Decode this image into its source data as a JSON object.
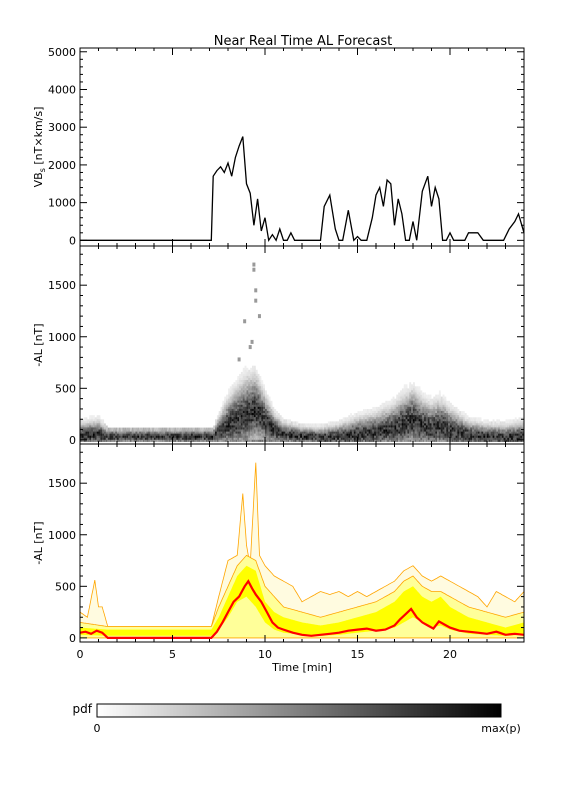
{
  "title": "Near Real Time AL Forecast",
  "colors": {
    "frame": "#000000",
    "vbs_line": "#000000",
    "median_line": "#ff0000",
    "band_inner": "#ffff00",
    "band_middle": "#ffff99",
    "band_outer_edge": "#ffa500",
    "band_outer_fill": "#fffbe0"
  },
  "colorbar": {
    "label": "pdf",
    "min_label": "0",
    "max_label": "max(p)"
  },
  "chart_data": [
    {
      "id": "vbs",
      "type": "line",
      "ylabel": "VB",
      "ylabel_sub": "s",
      "ylabel_unit": "[nT×km/s]",
      "ylim": [
        -150,
        5100
      ],
      "yticks": [
        0,
        1000,
        2000,
        3000,
        4000,
        5000
      ],
      "xlim": [
        0,
        24
      ],
      "series": [
        {
          "x": [
            0,
            7.1,
            7.2,
            7.4,
            7.6,
            7.8,
            8.0,
            8.2,
            8.4,
            8.6,
            8.8,
            9.0,
            9.2,
            9.4,
            9.6,
            9.8,
            10.0,
            10.2,
            10.4,
            10.6,
            10.8,
            11.0,
            11.2,
            11.4,
            11.6,
            11.8,
            12.0,
            12.5,
            13.0,
            13.2,
            13.5,
            13.8,
            14.0,
            14.2,
            14.5,
            14.8,
            15.0,
            15.2,
            15.5,
            15.8,
            16.0,
            16.2,
            16.4,
            16.6,
            16.8,
            17.0,
            17.2,
            17.4,
            17.6,
            17.8,
            18.0,
            18.2,
            18.5,
            18.8,
            19.0,
            19.2,
            19.4,
            19.6,
            19.8,
            20.0,
            20.2,
            20.4,
            20.6,
            20.8,
            21.0,
            21.2,
            21.5,
            21.8,
            22.0,
            22.3,
            22.6,
            22.9,
            23.2,
            23.5,
            23.7,
            24.0
          ],
          "y": [
            0,
            0,
            1700,
            1850,
            1950,
            1800,
            2050,
            1700,
            2200,
            2500,
            2750,
            1500,
            1250,
            400,
            1100,
            250,
            600,
            0,
            150,
            0,
            300,
            0,
            0,
            200,
            0,
            0,
            0,
            0,
            0,
            900,
            1200,
            300,
            0,
            0,
            800,
            0,
            100,
            0,
            0,
            600,
            1200,
            1400,
            900,
            1600,
            1500,
            400,
            1100,
            700,
            0,
            0,
            500,
            0,
            1300,
            1700,
            900,
            1400,
            1100,
            0,
            0,
            200,
            0,
            0,
            0,
            0,
            200,
            200,
            200,
            0,
            0,
            0,
            0,
            0,
            300,
            500,
            700,
            200
          ]
        }
      ]
    },
    {
      "id": "pdf",
      "type": "heatmap",
      "ylabel": "-AL [nT]",
      "ylim": [
        -40,
        1880
      ],
      "yticks": [
        0,
        500,
        1000,
        1500
      ],
      "xlim": [
        0,
        24
      ],
      "series": [
        {
          "name": "ridge",
          "x": [
            0,
            1,
            1.5,
            7.2,
            8.0,
            8.5,
            9.0,
            9.5,
            10.0,
            10.5,
            11.0,
            12.0,
            13.0,
            14.0,
            15.0,
            16.0,
            17.0,
            17.5,
            18.0,
            18.5,
            19.0,
            19.5,
            20.0,
            21.0,
            22.0,
            23.0,
            24.0
          ],
          "y": [
            50,
            60,
            40,
            40,
            150,
            200,
            250,
            300,
            200,
            100,
            60,
            40,
            30,
            40,
            60,
            80,
            120,
            160,
            200,
            150,
            120,
            140,
            100,
            50,
            40,
            30,
            40
          ]
        },
        {
          "name": "spread",
          "x": [
            0,
            1,
            1.5,
            7.2,
            8.0,
            8.5,
            9.0,
            9.5,
            10.0,
            10.5,
            11.0,
            12.0,
            13.0,
            14.0,
            15.0,
            16.0,
            17.0,
            17.5,
            18.0,
            18.5,
            19.0,
            19.5,
            20.0,
            21.0,
            22.0,
            23.0,
            24.0
          ],
          "y": [
            200,
            250,
            110,
            110,
            500,
            650,
            750,
            700,
            500,
            300,
            200,
            150,
            150,
            200,
            300,
            350,
            450,
            550,
            600,
            500,
            450,
            500,
            400,
            250,
            200,
            200,
            250
          ]
        }
      ]
    },
    {
      "id": "forecast",
      "type": "area",
      "ylabel": "-AL [nT]",
      "xlabel": "Time [min]",
      "ylim": [
        -40,
        1880
      ],
      "yticks": [
        0,
        500,
        1000,
        1500
      ],
      "xticks": [
        0,
        5,
        10,
        15,
        20
      ],
      "xlim": [
        0,
        24
      ],
      "series": [
        {
          "name": "max",
          "x": [
            0,
            0.4,
            0.8,
            1.0,
            1.2,
            1.5,
            7.1,
            7.5,
            8.0,
            8.5,
            8.8,
            9.0,
            9.2,
            9.5,
            9.7,
            10.0,
            10.5,
            11.0,
            11.5,
            12.0,
            12.5,
            13.0,
            13.5,
            14.0,
            14.5,
            15.0,
            15.5,
            16.0,
            16.5,
            17.0,
            17.5,
            18.0,
            18.5,
            19.0,
            19.5,
            20.0,
            20.5,
            21.0,
            21.5,
            22.0,
            22.5,
            23.0,
            23.5,
            24.0
          ],
          "y": [
            250,
            200,
            560,
            300,
            300,
            110,
            110,
            400,
            750,
            800,
            1400,
            900,
            700,
            1700,
            800,
            700,
            600,
            550,
            500,
            350,
            400,
            450,
            420,
            450,
            400,
            450,
            400,
            450,
            500,
            550,
            650,
            700,
            600,
            550,
            600,
            550,
            500,
            450,
            400,
            300,
            450,
            400,
            350,
            450
          ]
        },
        {
          "name": "outer",
          "x": [
            0,
            1.5,
            7.1,
            7.5,
            8.0,
            8.5,
            9.0,
            9.5,
            10.0,
            10.5,
            11.0,
            12.0,
            13.0,
            14.0,
            15.0,
            16.0,
            17.0,
            17.5,
            18.0,
            18.5,
            19.0,
            19.5,
            20.0,
            21.0,
            22.0,
            23.0,
            24.0
          ],
          "y": [
            150,
            110,
            110,
            300,
            500,
            700,
            800,
            750,
            500,
            400,
            300,
            250,
            200,
            250,
            300,
            350,
            450,
            550,
            600,
            500,
            450,
            450,
            400,
            300,
            250,
            200,
            250
          ]
        },
        {
          "name": "inner_hi",
          "x": [
            0,
            1.5,
            7.1,
            7.5,
            8.0,
            8.5,
            9.0,
            9.5,
            10.0,
            10.5,
            11.0,
            12.0,
            13.0,
            14.0,
            15.0,
            16.0,
            17.0,
            17.5,
            18.0,
            18.5,
            19.0,
            19.5,
            20.0,
            21.0,
            22.0,
            23.0,
            24.0
          ],
          "y": [
            100,
            80,
            80,
            200,
            400,
            600,
            700,
            650,
            350,
            250,
            200,
            150,
            120,
            150,
            200,
            250,
            350,
            450,
            500,
            400,
            350,
            400,
            300,
            200,
            150,
            100,
            150
          ]
        },
        {
          "name": "inner_lo",
          "x": [
            0,
            1.5,
            7.1,
            7.5,
            8.0,
            8.5,
            9.0,
            9.5,
            10.0,
            10.5,
            11.0,
            12.0,
            13.0,
            14.0,
            15.0,
            16.0,
            17.0,
            17.5,
            18.0,
            18.5,
            19.0,
            19.5,
            20.0,
            21.0,
            22.0,
            23.0,
            24.0
          ],
          "y": [
            30,
            20,
            20,
            80,
            200,
            350,
            400,
            300,
            150,
            80,
            50,
            30,
            20,
            30,
            50,
            70,
            100,
            150,
            200,
            150,
            100,
            120,
            80,
            40,
            30,
            20,
            30
          ]
        },
        {
          "name": "median",
          "x": [
            0,
            0.3,
            0.6,
            0.9,
            1.2,
            1.5,
            7.1,
            7.4,
            7.7,
            8.0,
            8.3,
            8.6,
            8.9,
            9.1,
            9.3,
            9.5,
            9.8,
            10.1,
            10.4,
            10.7,
            11.0,
            11.5,
            12.0,
            12.5,
            13.0,
            13.5,
            14.0,
            14.5,
            15.0,
            15.5,
            16.0,
            16.5,
            17.0,
            17.3,
            17.6,
            17.9,
            18.2,
            18.5,
            18.8,
            19.1,
            19.4,
            19.7,
            20.0,
            20.5,
            21.0,
            21.5,
            22.0,
            22.5,
            23.0,
            23.5,
            24.0
          ],
          "y": [
            50,
            60,
            40,
            70,
            50,
            0,
            0,
            60,
            150,
            250,
            350,
            400,
            500,
            550,
            480,
            420,
            350,
            250,
            150,
            100,
            80,
            50,
            30,
            20,
            30,
            40,
            50,
            70,
            80,
            90,
            70,
            80,
            120,
            180,
            230,
            280,
            200,
            150,
            120,
            90,
            160,
            130,
            100,
            70,
            60,
            50,
            40,
            60,
            30,
            40,
            30
          ]
        }
      ]
    }
  ]
}
